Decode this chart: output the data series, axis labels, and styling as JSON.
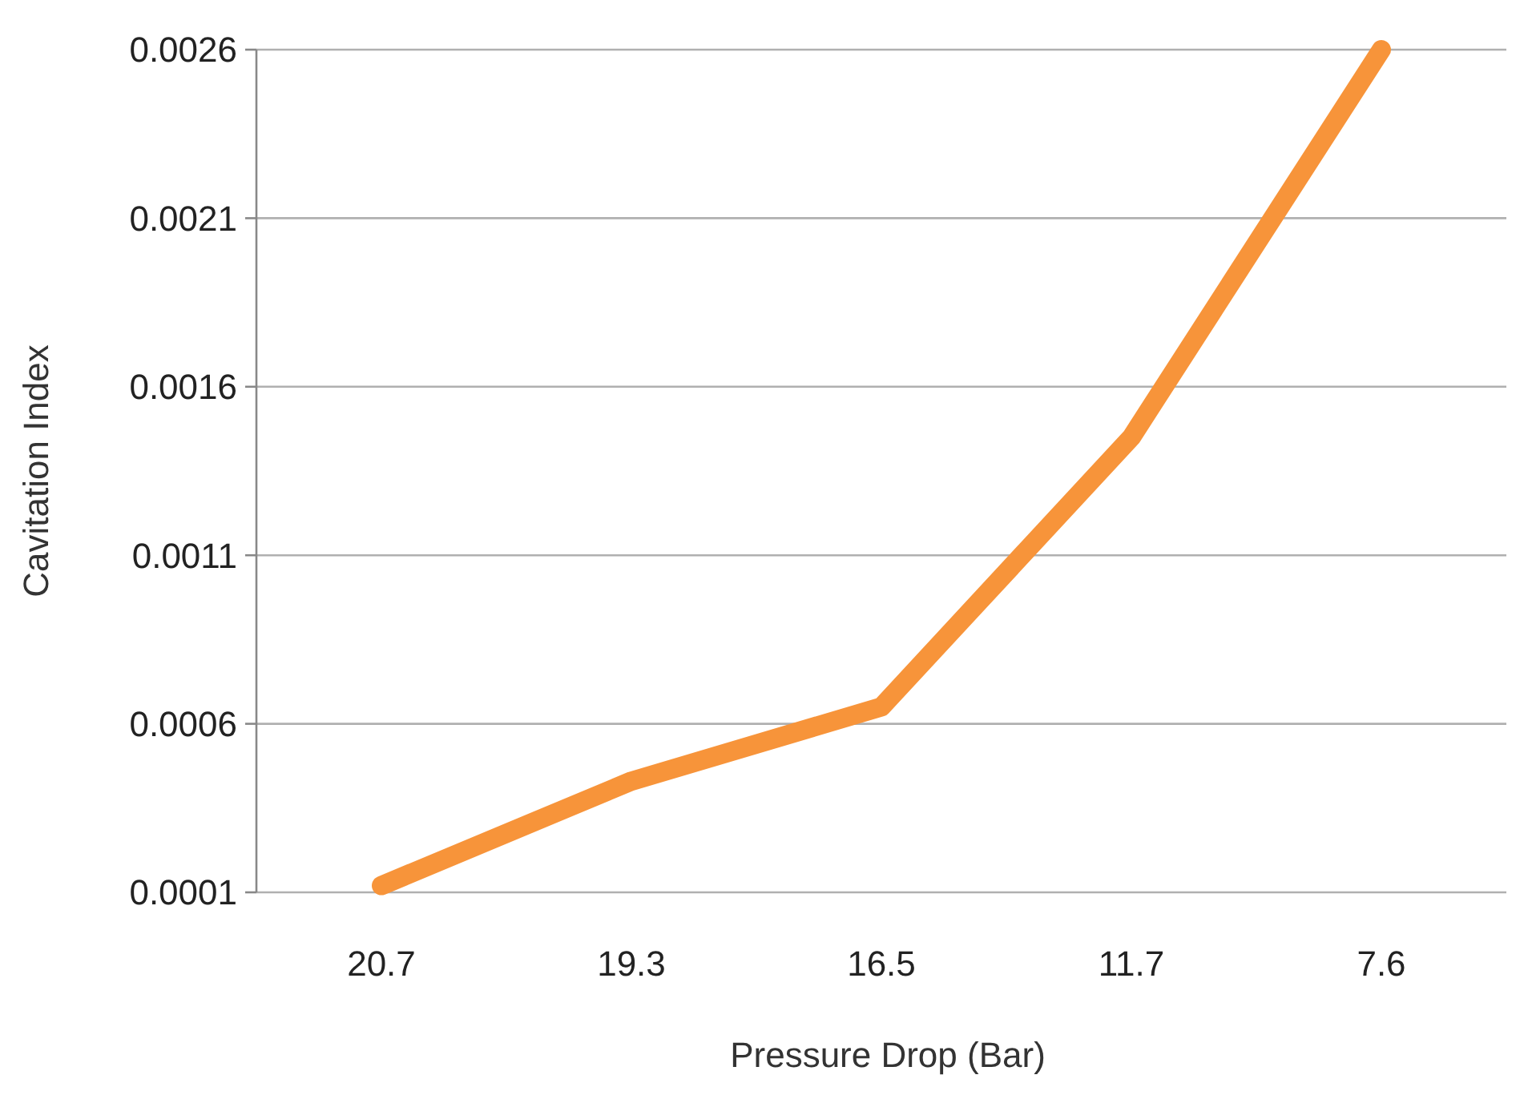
{
  "chart_data": {
    "type": "line",
    "xlabel": "Pressure Drop (Bar)",
    "ylabel": "Cavitation Index",
    "categories": [
      "20.7",
      "19.3",
      "16.5",
      "11.7",
      "7.6"
    ],
    "series": [
      {
        "color": "#f7943a",
        "values": [
          0.00012,
          0.00043,
          0.00065,
          0.00145,
          0.0026
        ]
      }
    ],
    "ylim": [
      0.0001,
      0.0026
    ],
    "yticks": [
      0.0001,
      0.0006,
      0.0011,
      0.0016,
      0.0021,
      0.0026
    ],
    "grid": "y",
    "marker": "none",
    "line_style": "solid"
  }
}
